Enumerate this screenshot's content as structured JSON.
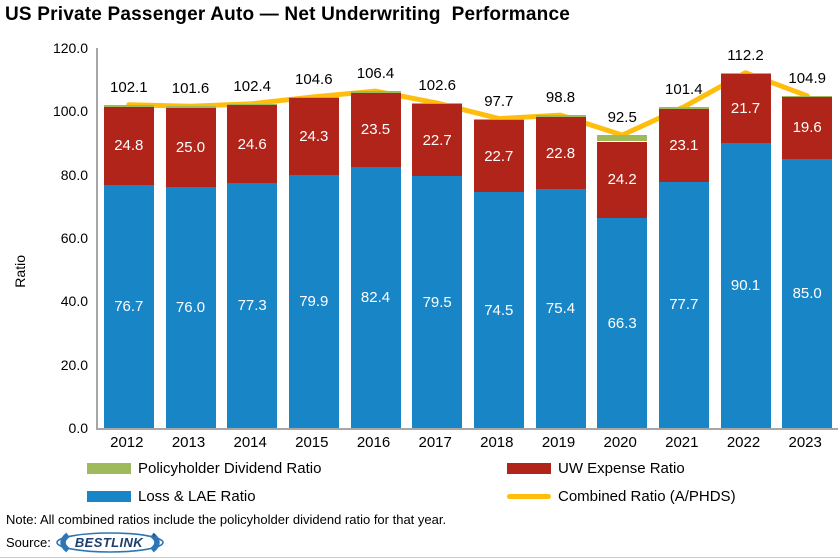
{
  "title": "US Private Passenger Auto — Net Underwriting  Performance",
  "chart_data": {
    "type": "bar",
    "subtype": "stacked-bars-with-line-overlay",
    "categories": [
      "2012",
      "2013",
      "2014",
      "2015",
      "2016",
      "2017",
      "2018",
      "2019",
      "2020",
      "2021",
      "2022",
      "2023"
    ],
    "series": [
      {
        "name": "Loss & LAE Ratio",
        "color": "#1785C6",
        "show_labels": true,
        "values": [
          76.7,
          76.0,
          77.3,
          79.9,
          82.4,
          79.5,
          74.5,
          75.4,
          66.3,
          77.7,
          90.1,
          85.0
        ]
      },
      {
        "name": "UW Expense Ratio",
        "color": "#B0241A",
        "show_labels": true,
        "values": [
          24.8,
          25.0,
          24.6,
          24.3,
          23.5,
          22.7,
          22.7,
          22.8,
          24.2,
          23.1,
          21.7,
          19.6
        ]
      },
      {
        "name": "Policyholder Dividend Ratio",
        "color": "#9FBA5C",
        "show_labels": false,
        "values": [
          0.6,
          0.6,
          0.5,
          0.4,
          0.5,
          0.4,
          0.5,
          0.6,
          2.0,
          0.6,
          0.4,
          0.3
        ]
      }
    ],
    "line": {
      "name": "Combined Ratio (A/PHDS)",
      "color": "#FFBE0D",
      "labels_visible": true,
      "values": [
        102.1,
        101.6,
        102.4,
        104.6,
        106.4,
        102.6,
        97.7,
        98.8,
        92.5,
        101.4,
        112.2,
        104.9
      ]
    },
    "ylabel": "Ratio",
    "ylim": [
      0,
      120
    ],
    "yticks": [
      0,
      20,
      40,
      60,
      80,
      100,
      120
    ],
    "grid": false,
    "legend_position": "bottom",
    "axis_color": "#A6A6A6"
  },
  "legend": {
    "items": [
      {
        "label": "Policyholder Dividend Ratio",
        "color": "#9FBA5C",
        "shape": "rect"
      },
      {
        "label": "UW Expense Ratio",
        "color": "#B0241A",
        "shape": "rect"
      },
      {
        "label": "Loss & LAE Ratio",
        "color": "#1785C6",
        "shape": "rect"
      },
      {
        "label": "Combined Ratio (A/PHDS)",
        "color": "#FFBE0D",
        "shape": "line"
      }
    ]
  },
  "note": "Note: All combined ratios include the policyholder dividend ratio for that year.",
  "source": {
    "label": "Source:",
    "logo_text": "BESTLINK",
    "logo_mark": "’",
    "logo_color": "#2E75B6",
    "logo_text_color": "#1D3E6E"
  }
}
